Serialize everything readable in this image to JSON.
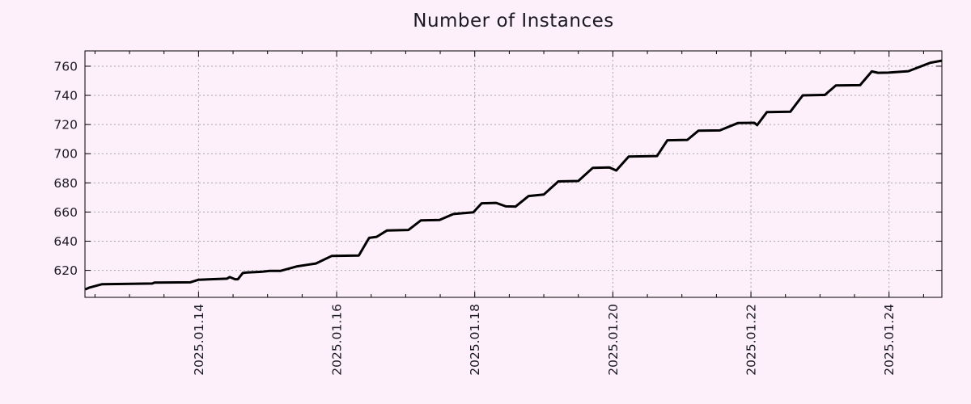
{
  "page": {
    "background_color": "#fdf0fa"
  },
  "chart_data": {
    "type": "line",
    "title": "Number of Instances",
    "title_color": "#1a1a22",
    "text_color": "#1a1a22",
    "axis_color": "#000000",
    "grid_color": "#a8a8a8",
    "line_color": "#000000",
    "line_width": 3,
    "grid": "dotted at major ticks, mirrored inward ticks on all borders",
    "legend": "none",
    "x_axis": {
      "label": "",
      "unit": "date (day of January 2025, decimal)",
      "min": 12.355,
      "max": 24.765,
      "minor_tick_step": 0.5,
      "minor_tick_start": 12.5,
      "minor_tick_end": 24.5,
      "major_ticks": [
        {
          "value": 14,
          "label": "2025.01.14"
        },
        {
          "value": 16,
          "label": "2025.01.16"
        },
        {
          "value": 18,
          "label": "2025.01.18"
        },
        {
          "value": 20,
          "label": "2025.01.20"
        },
        {
          "value": 22,
          "label": "2025.01.22"
        },
        {
          "value": 24,
          "label": "2025.01.24"
        }
      ],
      "tick_label_rotation_deg": -90
    },
    "y_axis": {
      "label": "",
      "min": 601.5,
      "max": 770.5,
      "tick_step": 20,
      "ticks": [
        {
          "value": 620,
          "label": "620"
        },
        {
          "value": 640,
          "label": "640"
        },
        {
          "value": 660,
          "label": "660"
        },
        {
          "value": 680,
          "label": "680"
        },
        {
          "value": 700,
          "label": "700"
        },
        {
          "value": 720,
          "label": "720"
        },
        {
          "value": 740,
          "label": "740"
        },
        {
          "value": 760,
          "label": "760"
        }
      ]
    },
    "series": [
      {
        "name": "instances",
        "color": "#000000",
        "points": [
          [
            12.36,
            607.0
          ],
          [
            12.42,
            608.2
          ],
          [
            12.56,
            610.0
          ],
          [
            12.6,
            610.5
          ],
          [
            13.33,
            611.0
          ],
          [
            13.36,
            611.6
          ],
          [
            13.88,
            611.8
          ],
          [
            14.0,
            613.6
          ],
          [
            14.41,
            614.3
          ],
          [
            14.45,
            615.4
          ],
          [
            14.53,
            613.9
          ],
          [
            14.57,
            613.9
          ],
          [
            14.64,
            618.2
          ],
          [
            14.7,
            618.5
          ],
          [
            14.91,
            619.0
          ],
          [
            15.03,
            619.6
          ],
          [
            15.19,
            619.7
          ],
          [
            15.43,
            622.8
          ],
          [
            15.7,
            624.7
          ],
          [
            15.93,
            629.9
          ],
          [
            16.32,
            630.2
          ],
          [
            16.47,
            642.3
          ],
          [
            16.58,
            643.0
          ],
          [
            16.73,
            647.4
          ],
          [
            17.04,
            647.7
          ],
          [
            17.22,
            654.3
          ],
          [
            17.49,
            654.6
          ],
          [
            17.69,
            658.6
          ],
          [
            17.98,
            659.8
          ],
          [
            18.1,
            666.0
          ],
          [
            18.31,
            666.3
          ],
          [
            18.45,
            663.9
          ],
          [
            18.59,
            663.7
          ],
          [
            18.78,
            671.0
          ],
          [
            19.0,
            672.0
          ],
          [
            19.21,
            681.0
          ],
          [
            19.5,
            681.3
          ],
          [
            19.71,
            690.3
          ],
          [
            19.95,
            690.6
          ],
          [
            20.05,
            688.5
          ],
          [
            20.23,
            698.0
          ],
          [
            20.64,
            698.4
          ],
          [
            20.79,
            709.2
          ],
          [
            21.08,
            709.5
          ],
          [
            21.24,
            715.8
          ],
          [
            21.55,
            716.0
          ],
          [
            21.81,
            721.0
          ],
          [
            22.05,
            721.2
          ],
          [
            22.09,
            719.6
          ],
          [
            22.23,
            728.5
          ],
          [
            22.57,
            728.8
          ],
          [
            22.75,
            740.0
          ],
          [
            23.07,
            740.3
          ],
          [
            23.23,
            746.8
          ],
          [
            23.58,
            747.0
          ],
          [
            23.75,
            756.4
          ],
          [
            23.84,
            755.5
          ],
          [
            23.99,
            755.6
          ],
          [
            24.28,
            756.6
          ],
          [
            24.6,
            762.4
          ],
          [
            24.76,
            763.8
          ]
        ]
      }
    ]
  }
}
